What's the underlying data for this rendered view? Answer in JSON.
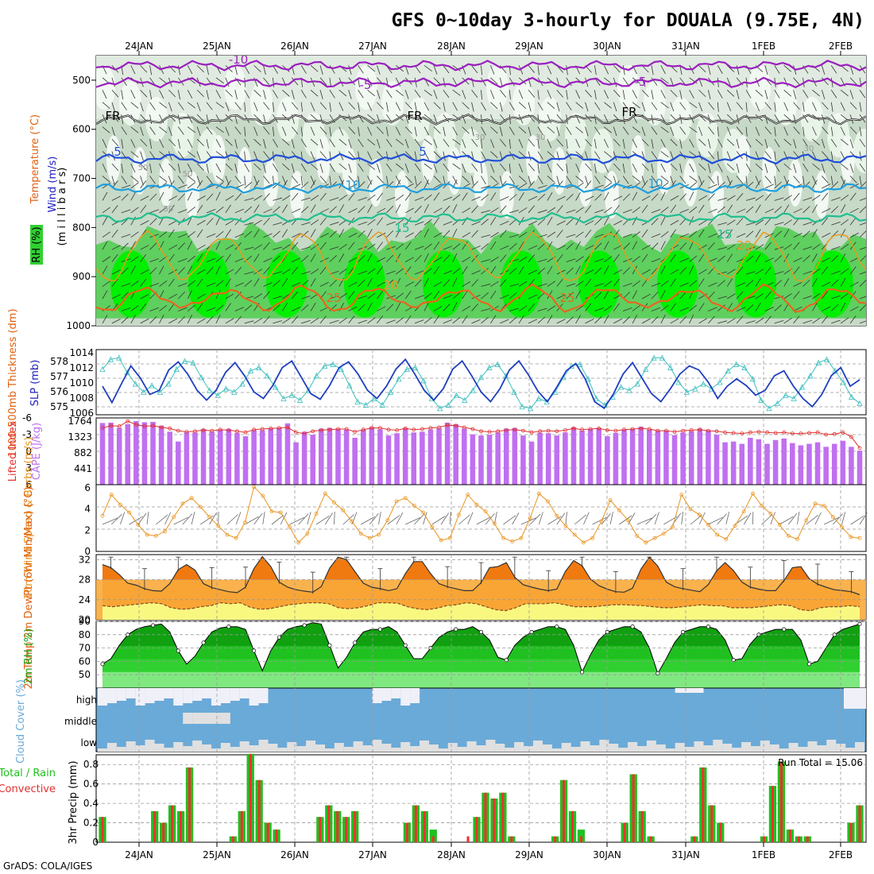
{
  "title": "GFS 0~10day 3-hourly for DOUALA (9.75E, 4N)",
  "credit": "GrADS: COLA/IGES",
  "colors": {
    "rh_light": "#e8f4e8",
    "rh_mid": "#c7d9c7",
    "rh_green": "#5fcf5f",
    "rh_bright": "#00f000",
    "temp_purple": "#9b1fbf",
    "temp_black": "#000000",
    "temp_blue": "#1f4fd8",
    "temp_cyan": "#1f9fdf",
    "temp_teal": "#1fbf8f",
    "temp_orange": "#e89a1f",
    "temp_dark_orange": "#e8661f",
    "slp": "#1f3fbf",
    "thickness": "#3fbfbf",
    "cape": "#c070f0",
    "lifted": "#e03030",
    "wind": "#e8941f",
    "temp_fill_hi": "#f07a10",
    "temp_fill_mid": "#f8aa3a",
    "dewpt_fill": "#f8f880",
    "rh2m_dark": "#10a010",
    "rh2m_mid": "#30d030",
    "rh2m_light": "#80e880",
    "cloud": "#6aaad8",
    "cloud_clear": "#e0e0e0",
    "precip_total": "#20c020",
    "precip_conv": "#f03030"
  },
  "dates": [
    "24JAN",
    "25JAN",
    "26JAN",
    "27JAN",
    "28JAN",
    "29JAN",
    "30JAN",
    "31JAN",
    "1FEB",
    "2FEB"
  ],
  "panels": {
    "upper": {
      "ylabel_wind": "Wind (m/s)",
      "ylabel_temp": "Temperature (°C)",
      "ylabel_rh": "RH (%)",
      "ylabel_mb": "(m i l l i b a r s)",
      "yticks": [
        "500",
        "600",
        "700",
        "800",
        "900",
        "1000"
      ],
      "contour_labels": [
        "-10",
        "-5",
        "-5",
        "FR",
        "FR",
        "FR",
        "5",
        "5",
        "10",
        "10",
        "15",
        "15",
        "20",
        "25",
        "25",
        "20",
        "50",
        "50",
        "30",
        "30",
        "30",
        "50"
      ]
    },
    "slp": {
      "ylabel_left": "1000-500mb Thickness (dm)",
      "ylabel_right": "SLP (mb)",
      "left_ticks": [
        "578",
        "577",
        "576",
        "575"
      ],
      "right_ticks": [
        "1014",
        "1012",
        "1010",
        "1008",
        "1006"
      ]
    },
    "cape": {
      "ylabel_left": "Lifted Index",
      "ylabel_right": "CAPE (J/kg)",
      "left_ticks": [
        "-6",
        "-3",
        "0",
        "3",
        "6"
      ],
      "right_ticks": [
        "1764",
        "1323",
        "882",
        "441"
      ]
    },
    "wind": {
      "ylabel": "10m Wind Speed & Barbs (m/s)",
      "ticks": [
        "6",
        "4",
        "2",
        "0"
      ]
    },
    "temp": {
      "ylabel": "2m Temp 2m DewPt (6hr Min/Max) (°C)",
      "ticks": [
        "32",
        "28",
        "24",
        "20"
      ]
    },
    "rh": {
      "ylabel": "2m RH (%)",
      "ticks": [
        "90",
        "80",
        "70",
        "60",
        "50"
      ]
    },
    "cloud": {
      "ylabel": "Cloud Cover (%)",
      "levels": [
        "high",
        "middle",
        "low"
      ]
    },
    "precip": {
      "ylabel_total": "Total / Rain",
      "ylabel_conv": "Convective",
      "ylabel": "3hr Precip (mm)",
      "ticks": [
        "0.8",
        "0.6",
        "0.4",
        "0.2",
        "0"
      ],
      "run_total": "Run Total = 15.06"
    }
  },
  "chart_data": [
    {
      "type": "line",
      "title": "1000-500mb Thickness / SLP",
      "x_step_hours": 3,
      "series": [
        {
          "name": "SLP (mb)",
          "axis": "right",
          "ylim": [
            1006,
            1014
          ],
          "values": [
            1009.5,
            1007.5,
            1009.8,
            1012,
            1010.5,
            1008.5,
            1009,
            1011.5,
            1012.5,
            1011,
            1009,
            1007.8,
            1009,
            1011.2,
            1012.4,
            1010.8,
            1008.8,
            1008,
            1009.6,
            1011.8,
            1012.6,
            1010.6,
            1008.6,
            1007.9,
            1009.6,
            1011.8,
            1012.5,
            1011,
            1009,
            1008,
            1009.5,
            1011.6,
            1012.8,
            1011,
            1009,
            1007.8,
            1009.2,
            1011.6,
            1012.6,
            1010.8,
            1008.8,
            1007.6,
            1009.2,
            1011.5,
            1012.6,
            1010.9,
            1008.9,
            1007.6,
            1009.4,
            1011.4,
            1012.3,
            1010.4,
            1007.6,
            1006.8,
            1008.6,
            1011,
            1012.4,
            1010.5,
            1008.6,
            1007.6,
            1009.2,
            1011,
            1012,
            1011.5,
            1010,
            1008,
            1009.5,
            1010.4,
            1009.6,
            1008.4,
            1009,
            1010.8,
            1011.4,
            1009.5,
            1008,
            1007,
            1008.5,
            1010.8,
            1011.8,
            1009.5,
            1010.3
          ]
        },
        {
          "name": "Thickness (dm)",
          "axis": "left",
          "ylim": [
            574.6,
            578.6
          ],
          "values": [
            577.4,
            578,
            578.1,
            577.2,
            576.5,
            576,
            576.4,
            576,
            576.5,
            577.4,
            577.9,
            577.8,
            576.9,
            576.1,
            575.8,
            576.2,
            576,
            576.5,
            577.3,
            577.5,
            577,
            576.3,
            575.6,
            575.8,
            575.5,
            576.1,
            577,
            577.6,
            577.7,
            577.4,
            576.4,
            575.4,
            575.2,
            575.6,
            575.2,
            576,
            576.8,
            577.4,
            577.5,
            576.7,
            575.6,
            575,
            575.2,
            575.8,
            575.5,
            576.1,
            576.9,
            577.5,
            577.7,
            577,
            576,
            575.1,
            575,
            575.6,
            575.4,
            576,
            576.9,
            577.6,
            577.7,
            576.8,
            575.6,
            575.2,
            575.7,
            576.3,
            576.1,
            576.5,
            577.4,
            578.1,
            578.1,
            577.5,
            576.6,
            576,
            576.2,
            576.5,
            576.2,
            576.6,
            577.3,
            577.7,
            577.5,
            576.8,
            575.5,
            575,
            575.3,
            575.8,
            575.6,
            576.3,
            577,
            577.8,
            578,
            577.3,
            576.6,
            575.7,
            575.3
          ]
        }
      ]
    },
    {
      "type": "bar",
      "title": "CAPE / Lifted Index",
      "series": [
        {
          "name": "CAPE (J/kg)",
          "ylim": [
            0,
            1764
          ],
          "values": [
            1630,
            1640,
            1500,
            1600,
            1680,
            1650,
            1660,
            1560,
            1400,
            1140,
            1380,
            1380,
            1470,
            1400,
            1450,
            1470,
            1370,
            1280,
            1440,
            1440,
            1480,
            1500,
            1620,
            1120,
            1400,
            1320,
            1480,
            1500,
            1480,
            1450,
            1240,
            1450,
            1520,
            1460,
            1300,
            1360,
            1500,
            1380,
            1400,
            1460,
            1490,
            1640,
            1600,
            1480,
            1330,
            1300,
            1320,
            1380,
            1480,
            1500,
            1300,
            1140,
            1370,
            1360,
            1300,
            1380,
            1520,
            1430,
            1470,
            1500,
            1280,
            1370,
            1460,
            1480,
            1530,
            1450,
            1420,
            1420,
            1310,
            1380,
            1420,
            1480,
            1440,
            1320,
            1120,
            1140,
            1080,
            1240,
            1200,
            1080,
            1180,
            1220,
            1100,
            1040,
            1080,
            1120,
            1000,
            1080,
            1160,
            1000,
            900
          ]
        },
        {
          "name": "Lifted Index",
          "ylim": [
            6,
            -6
          ],
          "values": [
            -4.2,
            -4.6,
            -4.5,
            -5.4,
            -4.8,
            -4.5,
            -4.6,
            -4.3,
            -4.1,
            -3.7,
            -3.5,
            -3.6,
            -3.8,
            -3.7,
            -3.9,
            -3.8,
            -3.6,
            -3.4,
            -3.9,
            -4,
            -4.1,
            -4.2,
            -4.3,
            -3.4,
            -3.2,
            -3.6,
            -3.8,
            -3.9,
            -4,
            -4,
            -3.5,
            -3.9,
            -4.2,
            -4.2,
            -3.9,
            -3.8,
            -4.1,
            -3.9,
            -4,
            -4.2,
            -4.3,
            -4.7,
            -4.6,
            -4.3,
            -4,
            -3.6,
            -3.5,
            -3.6,
            -3.8,
            -3.9,
            -3.7,
            -3.4,
            -3.6,
            -3.7,
            -3.6,
            -3.8,
            -4.1,
            -3.9,
            -4,
            -4.1,
            -3.8,
            -3.7,
            -3.9,
            -4,
            -4.1,
            -4,
            -3.7,
            -3.7,
            -3.5,
            -3.7,
            -3.8,
            -3.9,
            -3.7,
            -3.6,
            -3.4,
            -3.3,
            -3.2,
            -3.4,
            -3.5,
            -3.4,
            -3.3,
            -3.4,
            -3.2,
            -3.2,
            -3.3,
            -3.4,
            -3,
            -3.1,
            -3.4,
            -2.6,
            -0.6
          ]
        }
      ]
    },
    {
      "type": "line",
      "title": "10m Wind Speed",
      "ylabel": "m/s",
      "ylim": [
        0,
        6
      ],
      "values": [
        3.2,
        5.1,
        4.2,
        3.5,
        2.4,
        1.5,
        1.4,
        1.8,
        3.1,
        4.3,
        4.8,
        4,
        3.1,
        2.3,
        1.5,
        1.2,
        2.6,
        5.8,
        5,
        3.6,
        3.5,
        2.2,
        0.8,
        1.6,
        3.4,
        5.2,
        4.4,
        3.7,
        2.7,
        1.6,
        1.2,
        1.5,
        2.8,
        4.5,
        4.8,
        4.1,
        3.5,
        2.2,
        1,
        1.2,
        3.3,
        5.1,
        4.2,
        3.6,
        2.5,
        1.2,
        0.9,
        1.2,
        3,
        5.2,
        4.5,
        3.2,
        2.3,
        1.5,
        0.8,
        1.2,
        2.7,
        4.6,
        3.7,
        2.8,
        1.4,
        0.8,
        1.2,
        1.6,
        2.2,
        5.1,
        3.8,
        3.3,
        2.4,
        1.5,
        1.1,
        2.3,
        3.6,
        5.2,
        4.1,
        3.4,
        2.4,
        1.4,
        1.1,
        2.8,
        4.3,
        4.1,
        3.1,
        2.2,
        1.3,
        1.2
      ]
    },
    {
      "type": "area",
      "title": "2m Temp / DewPt",
      "ylabel": "°C",
      "ylim": [
        20,
        33
      ],
      "series": [
        {
          "name": "2m Temp",
          "values": [
            31,
            30.4,
            29,
            27.3,
            26.9,
            26.2,
            25.8,
            25.7,
            27.2,
            30,
            31,
            29.9,
            27.2,
            26.4,
            26,
            25.6,
            25.4,
            26.5,
            30.2,
            32.6,
            30.6,
            27.5,
            26.5,
            26,
            25.7,
            25.5,
            26.6,
            30.3,
            32.5,
            32,
            29.6,
            27.3,
            26.5,
            26.2,
            25.8,
            26.2,
            29.2,
            31.6,
            31.6,
            29.2,
            27.2,
            26.6,
            26.2,
            25.8,
            25.8,
            27.4,
            30.4,
            30.6,
            31.4,
            28.5,
            27,
            26.5,
            26.1,
            25.8,
            26.1,
            29.6,
            31.8,
            30.8,
            28.1,
            26.8,
            26.1,
            25.6,
            25.5,
            26.3,
            30.1,
            32.5,
            30.7,
            27.5,
            26.6,
            26.2,
            25.9,
            25.6,
            27,
            29.8,
            31.4,
            29.8,
            27.5,
            26.5,
            26.1,
            25.8,
            25.8,
            27.8,
            30.4,
            30.6,
            28.2,
            27.1,
            26.5,
            26,
            25.8,
            25.6,
            25
          ]
        },
        {
          "name": "2m DewPt",
          "values": [
            22.8,
            22.6,
            22.8,
            23,
            23.2,
            23.4,
            23.2,
            22.4,
            22.1,
            22.2,
            22.6,
            22.8,
            23.4,
            23.2,
            23.4,
            22.5,
            22.1,
            22.2,
            22.6,
            23,
            23.2,
            23.4,
            23.4,
            23.2,
            22.4,
            22.2,
            22.4,
            22.8,
            23.4,
            23.4,
            23.3,
            22.6,
            22.2,
            22,
            22.3,
            22.8,
            23,
            23.4,
            23.2,
            22.6,
            22,
            21.8,
            22.4,
            23.2,
            23.2,
            23.2,
            23.4,
            23,
            22.6,
            22.6,
            22.6,
            22.8,
            23,
            23,
            22.9,
            22.8,
            22.6,
            22.4,
            22.4,
            22.6,
            22.8,
            23,
            22.8,
            22.8,
            22.4,
            22.4,
            22.4,
            22.6,
            22.8,
            23,
            22.8,
            22,
            21.8,
            22.4,
            22.6,
            22.6,
            22.8,
            22.6
          ]
        }
      ]
    },
    {
      "type": "area",
      "title": "2m RH",
      "ylabel": "%",
      "ylim": [
        40,
        90
      ],
      "values": [
        58,
        62,
        72,
        80,
        84,
        86,
        87,
        88,
        82,
        68,
        58,
        64,
        74,
        82,
        85,
        86,
        86,
        84,
        68,
        53,
        68,
        78,
        84,
        86,
        87,
        89,
        88,
        72,
        55,
        63,
        74,
        82,
        84,
        84,
        86,
        82,
        72,
        62,
        62,
        70,
        78,
        82,
        84,
        84,
        86,
        82,
        76,
        63,
        61,
        72,
        78,
        82,
        84,
        86,
        86,
        84,
        72,
        52,
        65,
        76,
        82,
        84,
        86,
        86,
        82,
        70,
        51,
        62,
        74,
        82,
        84,
        86,
        86,
        84,
        76,
        61,
        62,
        73,
        80,
        82,
        84,
        84,
        84,
        76,
        58,
        60,
        70,
        80,
        84,
        86,
        88
      ]
    },
    {
      "type": "bar",
      "title": "3hr Precip",
      "ylabel": "mm",
      "ylim": [
        0,
        0.9
      ],
      "series": [
        {
          "name": "Total / Rain",
          "values": [
            0.26,
            0,
            0,
            0,
            0,
            0,
            0.32,
            0.2,
            0.38,
            0.32,
            0.77,
            0,
            0,
            0,
            0,
            0.06,
            0.32,
            0.91,
            0.64,
            0.2,
            0.13,
            0,
            0,
            0,
            0,
            0.26,
            0.38,
            0.32,
            0.26,
            0.32,
            0,
            0,
            0,
            0,
            0,
            0.2,
            0.38,
            0.32,
            0.13,
            0,
            0,
            0,
            0,
            0.26,
            0.51,
            0.45,
            0.51,
            0.06,
            0,
            0,
            0,
            0,
            0.06,
            0.64,
            0.32,
            0.13,
            0,
            0,
            0,
            0,
            0.2,
            0.7,
            0.32,
            0.06,
            0,
            0,
            0,
            0,
            0.06,
            0.77,
            0.38,
            0.2,
            0,
            0,
            0,
            0,
            0.06,
            0.58,
            0.83,
            0.13,
            0.06,
            0.06,
            0,
            0,
            0,
            0,
            0.2,
            0.38
          ]
        },
        {
          "name": "Convective",
          "values": [
            0.26,
            0,
            0,
            0,
            0,
            0,
            0.32,
            0.2,
            0.38,
            0.32,
            0.77,
            0,
            0,
            0,
            0,
            0.06,
            0.32,
            0.91,
            0.64,
            0.2,
            0.13,
            0,
            0,
            0,
            0,
            0.26,
            0.38,
            0.32,
            0.26,
            0.32,
            0,
            0,
            0,
            0,
            0,
            0.2,
            0.38,
            0.32,
            0.06,
            0,
            0,
            0,
            0.06,
            0.26,
            0.51,
            0.45,
            0.51,
            0.06,
            0,
            0,
            0,
            0,
            0.06,
            0.64,
            0.32,
            0.06,
            0,
            0,
            0,
            0,
            0.2,
            0.7,
            0.32,
            0.06,
            0,
            0,
            0,
            0,
            0.06,
            0.77,
            0.38,
            0.2,
            0,
            0,
            0,
            0,
            0.06,
            0.58,
            0.83,
            0.13,
            0.06,
            0.06,
            0,
            0,
            0,
            0,
            0.2,
            0.38
          ]
        }
      ]
    }
  ]
}
